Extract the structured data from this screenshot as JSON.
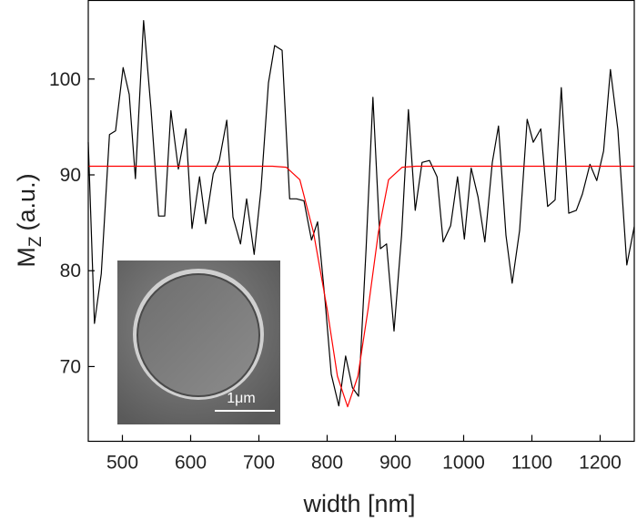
{
  "chart_data": {
    "type": "line",
    "x_label": "width [nm]",
    "y_label": "M",
    "y_label_sub": "Z",
    "y_label_unit": "(a.u.)",
    "inset_label": "1μm",
    "xlim": [
      450,
      1250
    ],
    "ylim": [
      62.2,
      108.2
    ],
    "xticks": [
      500,
      600,
      700,
      800,
      900,
      1000,
      1100,
      1200
    ],
    "yticks": [
      70,
      80,
      90,
      100
    ],
    "series": [
      {
        "color": "#000000",
        "x": [
          450,
          459,
          469,
          481,
          490,
          501,
          510,
          519,
          531,
          542,
          553,
          562,
          571,
          582,
          593,
          602,
          613,
          622,
          633,
          642,
          653,
          662,
          673,
          682,
          693,
          703,
          714,
          723,
          734,
          745,
          755,
          766,
          777,
          786,
          797,
          806,
          817,
          827,
          837,
          846,
          857,
          867,
          878,
          887,
          898,
          909,
          919,
          929,
          939,
          950,
          961,
          970,
          981,
          991,
          1001,
          1011,
          1021,
          1031,
          1042,
          1051,
          1062,
          1071,
          1082,
          1093,
          1102,
          1113,
          1123,
          1134,
          1143,
          1154,
          1165,
          1174,
          1185,
          1195,
          1205,
          1215,
          1226,
          1239,
          1250
        ],
        "values": [
          93.4,
          74.5,
          79.7,
          94.2,
          94.6,
          101.2,
          98.4,
          89.6,
          106.1,
          96.8,
          85.7,
          85.7,
          96.7,
          90.6,
          94.8,
          84.4,
          89.8,
          84.9,
          90.1,
          91.5,
          95.7,
          85.6,
          82.8,
          87.5,
          81.7,
          88.5,
          99.6,
          103.5,
          103.0,
          87.5,
          87.5,
          87.3,
          83.2,
          85.1,
          76.8,
          69.2,
          65.9,
          71.1,
          67.8,
          66.9,
          82.3,
          98.1,
          82.3,
          82.8,
          73.7,
          83.7,
          96.8,
          86.3,
          91.3,
          91.5,
          89.8,
          83.0,
          84.7,
          89.8,
          83.3,
          90.7,
          87.7,
          83.0,
          91.3,
          95.1,
          83.7,
          78.7,
          84.2,
          95.8,
          93.4,
          94.8,
          86.7,
          87.4,
          99.1,
          86.0,
          86.3,
          88.0,
          91.1,
          89.4,
          92.5,
          101.0,
          94.7,
          80.6,
          84.6
        ]
      },
      {
        "color": "#ff0000",
        "x": [
          450,
          720,
          740,
          760,
          780,
          800,
          815,
          830,
          845,
          860,
          875,
          890,
          910,
          930,
          1250
        ],
        "values": [
          90.9,
          90.9,
          90.8,
          89.5,
          84,
          76,
          69,
          65.8,
          69,
          76,
          84,
          89.5,
          90.8,
          90.9,
          90.9
        ]
      }
    ]
  }
}
